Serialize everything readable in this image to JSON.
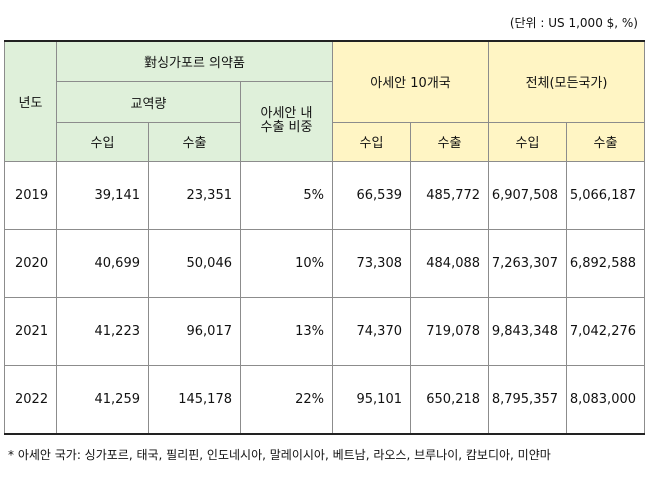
{
  "unit_note": "(단위 : US 1,000 $, %)",
  "headers": {
    "year": "년도",
    "group_singapore": "對싱가포르 의약품",
    "trade_volume": "교역량",
    "asean_share_line1": "아세안 내",
    "asean_share_line2": "수출 비중",
    "group_asean": "아세안 10개국",
    "group_total": "전체(모든국가)",
    "import": "수입",
    "export": "수출"
  },
  "rows": [
    {
      "year": "2019",
      "sg_import": "39,141",
      "sg_export": "23,351",
      "share": "5%",
      "asean_import": "66,539",
      "asean_export": "485,772",
      "total_import": "6,907,508",
      "total_export": "5,066,187"
    },
    {
      "year": "2020",
      "sg_import": "40,699",
      "sg_export": "50,046",
      "share": "10%",
      "asean_import": "73,308",
      "asean_export": "484,088",
      "total_import": "7,263,307",
      "total_export": "6,892,588"
    },
    {
      "year": "2021",
      "sg_import": "41,223",
      "sg_export": "96,017",
      "share": "13%",
      "asean_import": "74,370",
      "asean_export": "719,078",
      "total_import": "9,843,348",
      "total_export": "7,042,276"
    },
    {
      "year": "2022",
      "sg_import": "41,259",
      "sg_export": "145,178",
      "share": "22%",
      "asean_import": "95,101",
      "asean_export": "650,218",
      "total_import": "8,795,357",
      "total_export": "8,083,000"
    }
  ],
  "footnote": "* 아세안 국가: 싱가포르, 태국, 필리핀, 인도네시아, 말레이시아, 베트남, 라오스, 브루나이, 캄보디아, 미얀마",
  "colors": {
    "header_green": "#dff0da",
    "header_yellow": "#fff5c4"
  }
}
